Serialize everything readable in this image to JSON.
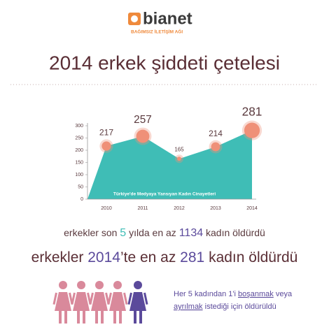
{
  "header": {
    "logo": "bianet",
    "tagline": "BAĞIMSIZ İLETİŞİM AĞI"
  },
  "title": "2014 erkek şiddeti çetelesi",
  "chart_data": {
    "type": "area",
    "x": [
      "2010",
      "2011",
      "2012",
      "2013",
      "2014"
    ],
    "values": [
      217,
      257,
      165,
      214,
      281
    ],
    "ylim": [
      0,
      300
    ],
    "yticks": [
      0,
      50,
      100,
      150,
      200,
      250,
      300
    ],
    "annotation": "Türkiye'de Medyaya Yansıyan Kadın Cinayetleri",
    "color": "#3fbdb6",
    "marker_color": "#ef9078"
  },
  "statements": [
    [
      "erkekler son",
      "5",
      "yılda en az",
      "1134",
      "kadın öldürdü"
    ],
    [
      "erkekler",
      "2014",
      "’te en az",
      "281",
      "kadın öldürdü"
    ],
    [
      "Her 5 kadından 1'i",
      "boşanmak",
      "veya"
    ],
    [
      "ayrılmak",
      "istediği için öldürüldü"
    ]
  ]
}
